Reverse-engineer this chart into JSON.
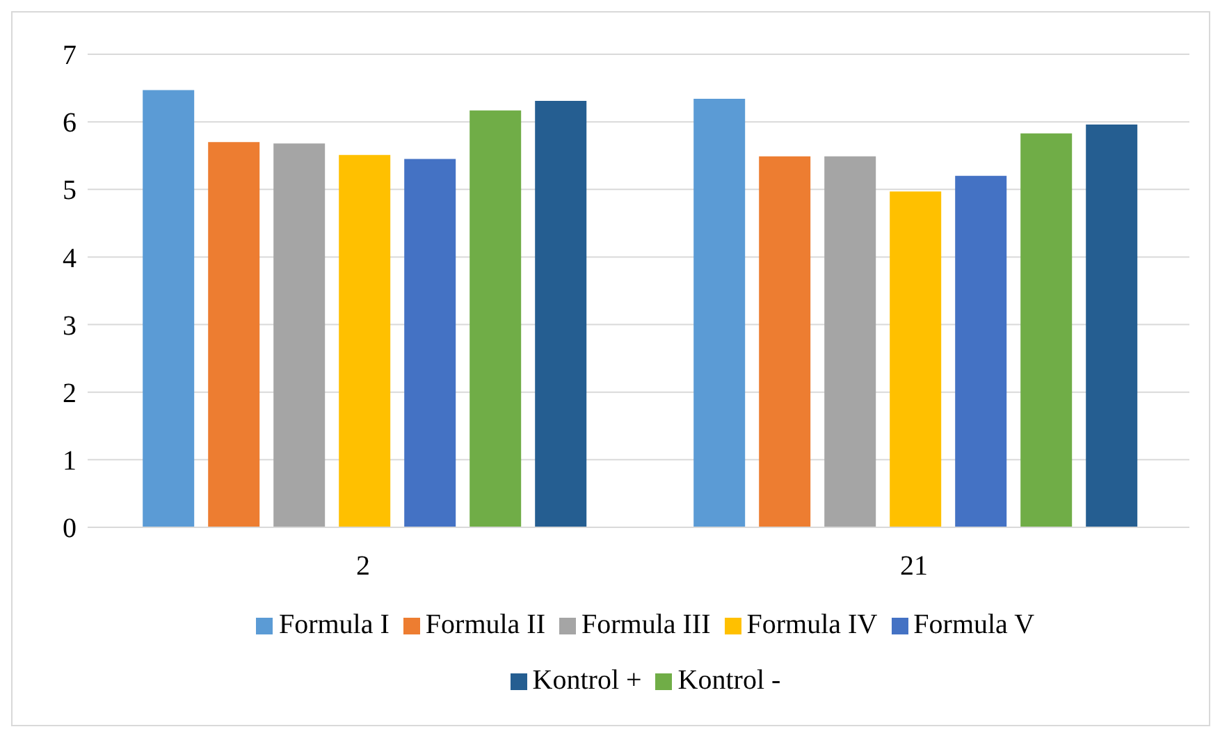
{
  "chart_data": {
    "type": "bar",
    "categories": [
      "2",
      "21"
    ],
    "series": [
      {
        "name": "Formula I",
        "color": "#5b9bd5",
        "values": [
          6.47,
          6.34
        ]
      },
      {
        "name": "Formula II",
        "color": "#ed7d31",
        "values": [
          5.7,
          5.49
        ]
      },
      {
        "name": "Formula III",
        "color": "#a5a5a5",
        "values": [
          5.68,
          5.49
        ]
      },
      {
        "name": "Formula IV",
        "color": "#ffc000",
        "values": [
          5.51,
          4.97
        ]
      },
      {
        "name": "Formula V",
        "color": "#4472c4",
        "values": [
          5.45,
          5.2
        ]
      },
      {
        "name": "Kontrol -",
        "color": "#70ad47",
        "values": [
          6.17,
          5.83
        ]
      },
      {
        "name": "Kontrol +",
        "color": "#255e91",
        "values": [
          6.31,
          5.96
        ]
      }
    ],
    "ylim": [
      0,
      7
    ],
    "yticks": [
      0,
      1,
      2,
      3,
      4,
      5,
      6,
      7
    ],
    "grid": "y",
    "legend": "bottom"
  }
}
